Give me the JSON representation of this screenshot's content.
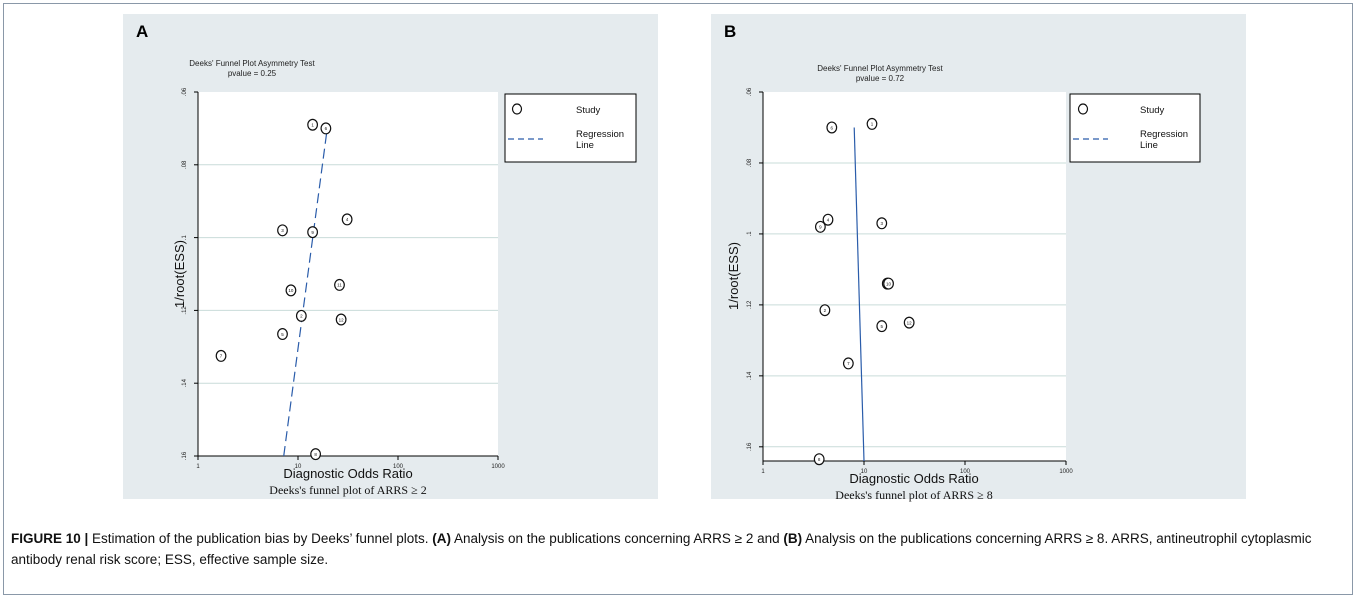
{
  "figure": {
    "caption_label": "FIGURE 10 |",
    "caption_part1": " Estimation of the publication bias by Deeks’ funnel plots. ",
    "caption_a_label": "(A)",
    "caption_part2": " Analysis on the publications concerning ARRS ≥ 2 and ",
    "caption_b_label": "(B)",
    "caption_part3": " Analysis on the publications concerning ARRS ≥ 8. ARRS, antineutrophil cytoplasmic antibody renal risk score; ESS, effective sample size.",
    "colors": {
      "panel_bg": "#e5ebee",
      "plot_bg": "#ffffff",
      "grid": "#c9dcd9",
      "regression": "#2a5caa",
      "marker": "#111111"
    }
  },
  "chart_data": [
    {
      "panel_label": "A",
      "type": "scatter",
      "title": "Deeks' Funnel Plot Asymmetry Test",
      "subtitle": "pvalue =  0.25",
      "xlabel": "Diagnostic Odds Ratio",
      "footnote": "Deeks's funnel plot of ARRS ≥ 2",
      "ylabel": "1/root(ESS)",
      "x_scale": "log",
      "xlim": [
        1,
        1000
      ],
      "x_ticks": [
        1,
        10,
        100,
        1000
      ],
      "x_tick_labels": [
        "1",
        "10",
        "100",
        "1000"
      ],
      "ylim": [
        0.06,
        0.16
      ],
      "y_reversed": true,
      "y_ticks": [
        0.06,
        0.08,
        0.1,
        0.12,
        0.14,
        0.16
      ],
      "y_tick_labels": [
        ".06",
        ".08",
        ".1",
        ".12",
        ".14",
        ".16"
      ],
      "grid": "horizontal",
      "legend": {
        "position": "right",
        "entries": [
          "Study",
          "Regression",
          "Line"
        ]
      },
      "points": [
        {
          "label": "1",
          "x": 14,
          "y": 0.069
        },
        {
          "label": "6",
          "x": 19,
          "y": 0.07
        },
        {
          "label": "4",
          "x": 31,
          "y": 0.095
        },
        {
          "label": "3",
          "x": 7,
          "y": 0.098
        },
        {
          "label": "9",
          "x": 14,
          "y": 0.0985
        },
        {
          "label": "11",
          "x": 26,
          "y": 0.113
        },
        {
          "label": "10",
          "x": 8.5,
          "y": 0.1145
        },
        {
          "label": "2",
          "x": 10.8,
          "y": 0.1215
        },
        {
          "label": "12",
          "x": 27,
          "y": 0.1225
        },
        {
          "label": "5",
          "x": 7,
          "y": 0.1265
        },
        {
          "label": "7",
          "x": 1.7,
          "y": 0.1325
        },
        {
          "label": "8",
          "x": 15,
          "y": 0.1595
        }
      ],
      "regression_line": {
        "dashed": true,
        "from": {
          "x": 7.2,
          "y": 0.16
        },
        "to": {
          "x": 19.5,
          "y": 0.0705
        }
      }
    },
    {
      "panel_label": "B",
      "type": "scatter",
      "title": "Deeks' Funnel Plot Asymmetry Test",
      "subtitle": "pvalue =  0.72",
      "xlabel": "Diagnostic Odds Ratio",
      "footnote": "Deeks's funnel plot of ARRS ≥ 8",
      "ylabel": "1/root(ESS)",
      "x_scale": "log",
      "xlim": [
        1,
        1000
      ],
      "x_ticks": [
        1,
        10,
        100,
        1000
      ],
      "x_tick_labels": [
        "1",
        "10",
        "100",
        "1000"
      ],
      "ylim": [
        0.06,
        0.164
      ],
      "y_reversed": true,
      "y_ticks": [
        0.06,
        0.08,
        0.1,
        0.12,
        0.14,
        0.16
      ],
      "y_tick_labels": [
        ".06",
        ".08",
        ".1",
        ".12",
        ".14",
        ".16"
      ],
      "grid": "horizontal",
      "legend": {
        "position": "right",
        "entries": [
          "Study",
          "Regression",
          "Line"
        ]
      },
      "points": [
        {
          "label": "1",
          "x": 12,
          "y": 0.069
        },
        {
          "label": "6",
          "x": 4.8,
          "y": 0.07
        },
        {
          "label": "4",
          "x": 4.4,
          "y": 0.096
        },
        {
          "label": "3",
          "x": 15,
          "y": 0.097
        },
        {
          "label": "9",
          "x": 3.7,
          "y": 0.098
        },
        {
          "label": "11",
          "x": 17,
          "y": 0.114
        },
        {
          "label": "10",
          "x": 17.5,
          "y": 0.114
        },
        {
          "label": "2",
          "x": 4.1,
          "y": 0.1215
        },
        {
          "label": "12",
          "x": 28,
          "y": 0.125
        },
        {
          "label": "5",
          "x": 15,
          "y": 0.126
        },
        {
          "label": "7",
          "x": 7,
          "y": 0.1365
        },
        {
          "label": "8",
          "x": 3.6,
          "y": 0.1635
        }
      ],
      "regression_line": {
        "dashed": false,
        "from": {
          "x": 10,
          "y": 0.164
        },
        "to": {
          "x": 8,
          "y": 0.07
        }
      }
    }
  ]
}
